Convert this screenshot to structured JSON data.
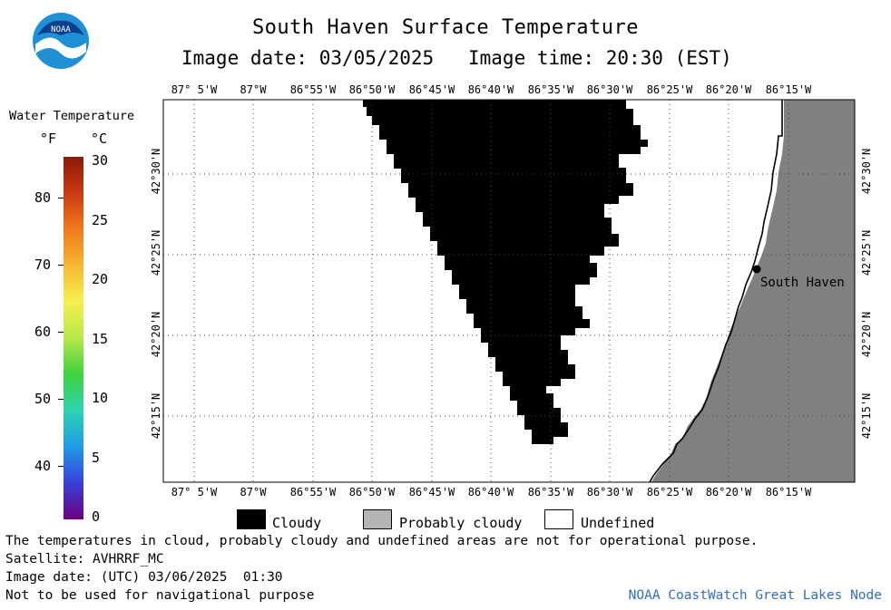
{
  "header": {
    "title": "South Haven Surface Temperature",
    "image_date": "Image date: 03/05/2025",
    "image_time": "Image time: 20:30 (EST)"
  },
  "logo": {
    "text": "NOAA",
    "icon": "noaa-logo-icon",
    "color": "#1f8fd6"
  },
  "colorbar": {
    "title": "Water Temperature",
    "unit_f": "°F",
    "unit_c": "°C",
    "f_ticks": [
      "80",
      "70",
      "60",
      "50",
      "40"
    ],
    "c_ticks": [
      "30",
      "25",
      "20",
      "15",
      "10",
      "5",
      "0"
    ],
    "range_c": [
      0,
      30
    ],
    "colors": [
      "#6b007f",
      "#3a3fd8",
      "#1f9be8",
      "#2ed4b0",
      "#3fd23f",
      "#b7e84a",
      "#f5f050",
      "#f7b733",
      "#f07a1c",
      "#c83a12",
      "#8a1a0a"
    ]
  },
  "map": {
    "lon_labels": [
      "87° 5'W",
      "87°W",
      "86°55'W",
      "86°50'W",
      "86°45'W",
      "86°40'W",
      "86°35'W",
      "86°30'W",
      "86°25'W",
      "86°20'W",
      "86°15'W"
    ],
    "lat_labels": [
      "42°30'N",
      "42°25'N",
      "42°20'N",
      "42°15'N"
    ],
    "city": "South Haven",
    "colors": {
      "cloudy": "#000000",
      "land": "#808080",
      "undefined": "#ffffff"
    }
  },
  "legend": {
    "cloudy": "Cloudy",
    "probably_cloudy": "Probably cloudy",
    "undefined": "Undefined",
    "colors": {
      "cloudy": "#000000",
      "probably_cloudy": "#b4b4b4",
      "undefined": "#ffffff"
    }
  },
  "footer": {
    "disclaimer": "The temperatures in cloud, probably cloudy and undefined areas are not for operational purpose.",
    "satellite": "Satellite: AVHRRF_MC",
    "utc_date": "Image date: (UTC) 03/06/2025  01:30",
    "nav_warning": "Not to be used for navigational purpose",
    "credit": "NOAA CoastWatch Great Lakes Node",
    "credit_color": "#2f6fc0"
  }
}
